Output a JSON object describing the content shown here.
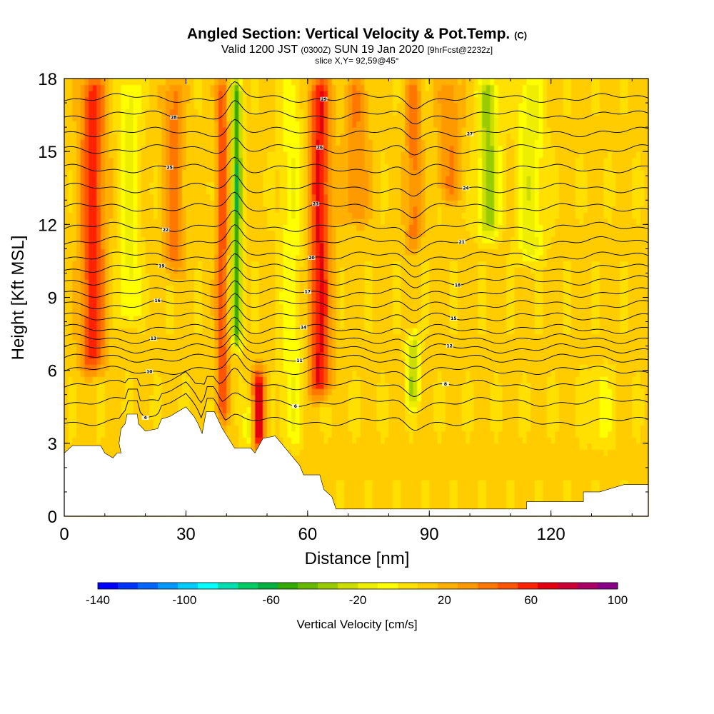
{
  "header": {
    "title": "Angled Section: Vertical Velocity & Pot.Temp.",
    "title_tag": "(C)",
    "valid_main": "Valid 1200 JST",
    "valid_utc": "(0300Z)",
    "valid_date": "SUN 19 Jan 2020",
    "forecast_tag": "[9hrFcst@2232z]",
    "slice": "slice X,Y= 92,59@45°"
  },
  "chart_data": {
    "type": "heatmap",
    "xlabel": "Distance [nm]",
    "ylabel": "Height [Kft MSL]",
    "xlim": [
      0,
      144
    ],
    "ylim": [
      0,
      18
    ],
    "x_ticks": [
      "0",
      "30",
      "60",
      "90",
      "120"
    ],
    "y_ticks": [
      "0",
      "3",
      "6",
      "9",
      "12",
      "15",
      "18"
    ],
    "colorbar": {
      "title": "Vertical Velocity [cm/s]",
      "range": [
        -140,
        100
      ],
      "tick_labels": [
        "-140",
        "-100",
        "-60",
        "-20",
        "20",
        "60",
        "100"
      ],
      "colors": [
        "#0000ff",
        "#0033ff",
        "#0066ff",
        "#0099ff",
        "#00ccff",
        "#00ffff",
        "#00e0b0",
        "#00cc66",
        "#00b040",
        "#33aa00",
        "#66bb00",
        "#99cc00",
        "#ccdd00",
        "#eeee00",
        "#ffff00",
        "#ffe000",
        "#ffcc00",
        "#ffb000",
        "#ff9900",
        "#ff7700",
        "#ff5500",
        "#ff2200",
        "#e50010",
        "#cc0033",
        "#aa0066",
        "#880088"
      ]
    },
    "background_level": 10,
    "updraft_bands": [
      {
        "x": 7,
        "width": 3,
        "peak": 50,
        "ymin": 6,
        "ymax": 18
      },
      {
        "x": 63,
        "width": 2.6,
        "peak": 55,
        "ymin": 5,
        "ymax": 18
      },
      {
        "x": 48,
        "width": 1.5,
        "peak": 60,
        "ymin": 2.8,
        "ymax": 6
      },
      {
        "x": 39,
        "width": 1.5,
        "peak": 40,
        "ymin": 4,
        "ymax": 18
      },
      {
        "x": 27,
        "width": 2.5,
        "peak": 30,
        "ymin": 10,
        "ymax": 18
      },
      {
        "x": 86,
        "width": 2,
        "peak": 30,
        "ymin": 11,
        "ymax": 18
      },
      {
        "x": 72,
        "width": 3,
        "peak": 25,
        "ymin": 12,
        "ymax": 18
      },
      {
        "x": 95,
        "width": 3,
        "peak": 25,
        "ymin": 13,
        "ymax": 18
      }
    ],
    "downdraft_bands": [
      {
        "x": 42.5,
        "width": 1.3,
        "peak": -65,
        "ymin": 7,
        "ymax": 18
      },
      {
        "x": 104.5,
        "width": 2.5,
        "peak": -45,
        "ymin": 11.5,
        "ymax": 18
      },
      {
        "x": 86,
        "width": 1.5,
        "peak": -40,
        "ymin": 4.5,
        "ymax": 7.5
      },
      {
        "x": 45.5,
        "width": 1,
        "peak": -30,
        "ymin": 3,
        "ymax": 4.5
      },
      {
        "x": 16,
        "width": 2.5,
        "peak": -25,
        "ymin": 8,
        "ymax": 18
      },
      {
        "x": 115,
        "width": 3,
        "peak": -28,
        "ymin": 10.5,
        "ymax": 18
      },
      {
        "x": 56,
        "width": 2.5,
        "peak": -20,
        "ymin": 3,
        "ymax": 18
      },
      {
        "x": 132,
        "width": 3,
        "peak": -15,
        "ymin": 3,
        "ymax": 6
      }
    ],
    "terrain": [
      [
        0,
        2.6
      ],
      [
        2,
        2.9
      ],
      [
        9,
        2.9
      ],
      [
        10,
        2.6
      ],
      [
        12,
        2.4
      ],
      [
        13,
        2.6
      ],
      [
        14,
        2.6
      ],
      [
        13.5,
        3.0
      ],
      [
        14,
        3.6
      ],
      [
        15,
        3.8
      ],
      [
        15.5,
        4.2
      ],
      [
        18,
        4.2
      ],
      [
        18.3,
        3.8
      ],
      [
        20,
        3.5
      ],
      [
        23,
        3.6
      ],
      [
        24,
        4.0
      ],
      [
        26,
        4.1
      ],
      [
        30,
        4.5
      ],
      [
        32,
        4.1
      ],
      [
        33,
        3.8
      ],
      [
        34,
        3.4
      ],
      [
        35,
        4.3
      ],
      [
        37,
        4.3
      ],
      [
        39,
        3.6
      ],
      [
        42,
        2.8
      ],
      [
        46,
        2.8
      ],
      [
        47,
        2.6
      ],
      [
        49,
        3.2
      ],
      [
        52,
        3.3
      ],
      [
        54,
        2.9
      ],
      [
        56,
        2.5
      ],
      [
        58,
        2.1
      ],
      [
        59,
        1.7
      ],
      [
        63,
        1.7
      ],
      [
        64,
        1.1
      ],
      [
        66,
        0.8
      ],
      [
        67,
        0.3
      ],
      [
        114,
        0.3
      ],
      [
        114,
        0.6
      ],
      [
        128,
        0.6
      ],
      [
        128,
        1.0
      ],
      [
        132,
        1.0
      ],
      [
        138,
        1.3
      ],
      [
        144,
        1.3
      ]
    ],
    "theta_contours": [
      {
        "base": 3.9,
        "label": "4"
      },
      {
        "base": 4.7,
        "label": "6"
      },
      {
        "base": 5.4,
        "label": "8"
      },
      {
        "base": 6.0,
        "label": "10"
      },
      {
        "base": 6.5,
        "label": "11"
      },
      {
        "base": 6.9,
        "label": "12"
      },
      {
        "base": 7.3,
        "label": "13"
      },
      {
        "base": 7.7,
        "label": "14"
      },
      {
        "base": 8.2,
        "label": "15"
      },
      {
        "base": 8.7,
        "label": "16"
      },
      {
        "base": 9.2,
        "label": "17"
      },
      {
        "base": 9.7,
        "label": "18"
      },
      {
        "base": 10.2,
        "label": "19"
      },
      {
        "base": 10.7,
        "label": "20"
      },
      {
        "base": 11.3,
        "label": "21"
      },
      {
        "base": 11.9,
        "label": "22"
      },
      {
        "base": 12.7,
        "label": "23"
      },
      {
        "base": 13.5,
        "label": "24"
      },
      {
        "base": 14.3,
        "label": "25"
      },
      {
        "base": 15.1,
        "label": "26"
      },
      {
        "base": 15.8,
        "label": "27"
      },
      {
        "base": 16.5,
        "label": "28"
      },
      {
        "base": 17.2,
        "label": "29"
      }
    ]
  }
}
